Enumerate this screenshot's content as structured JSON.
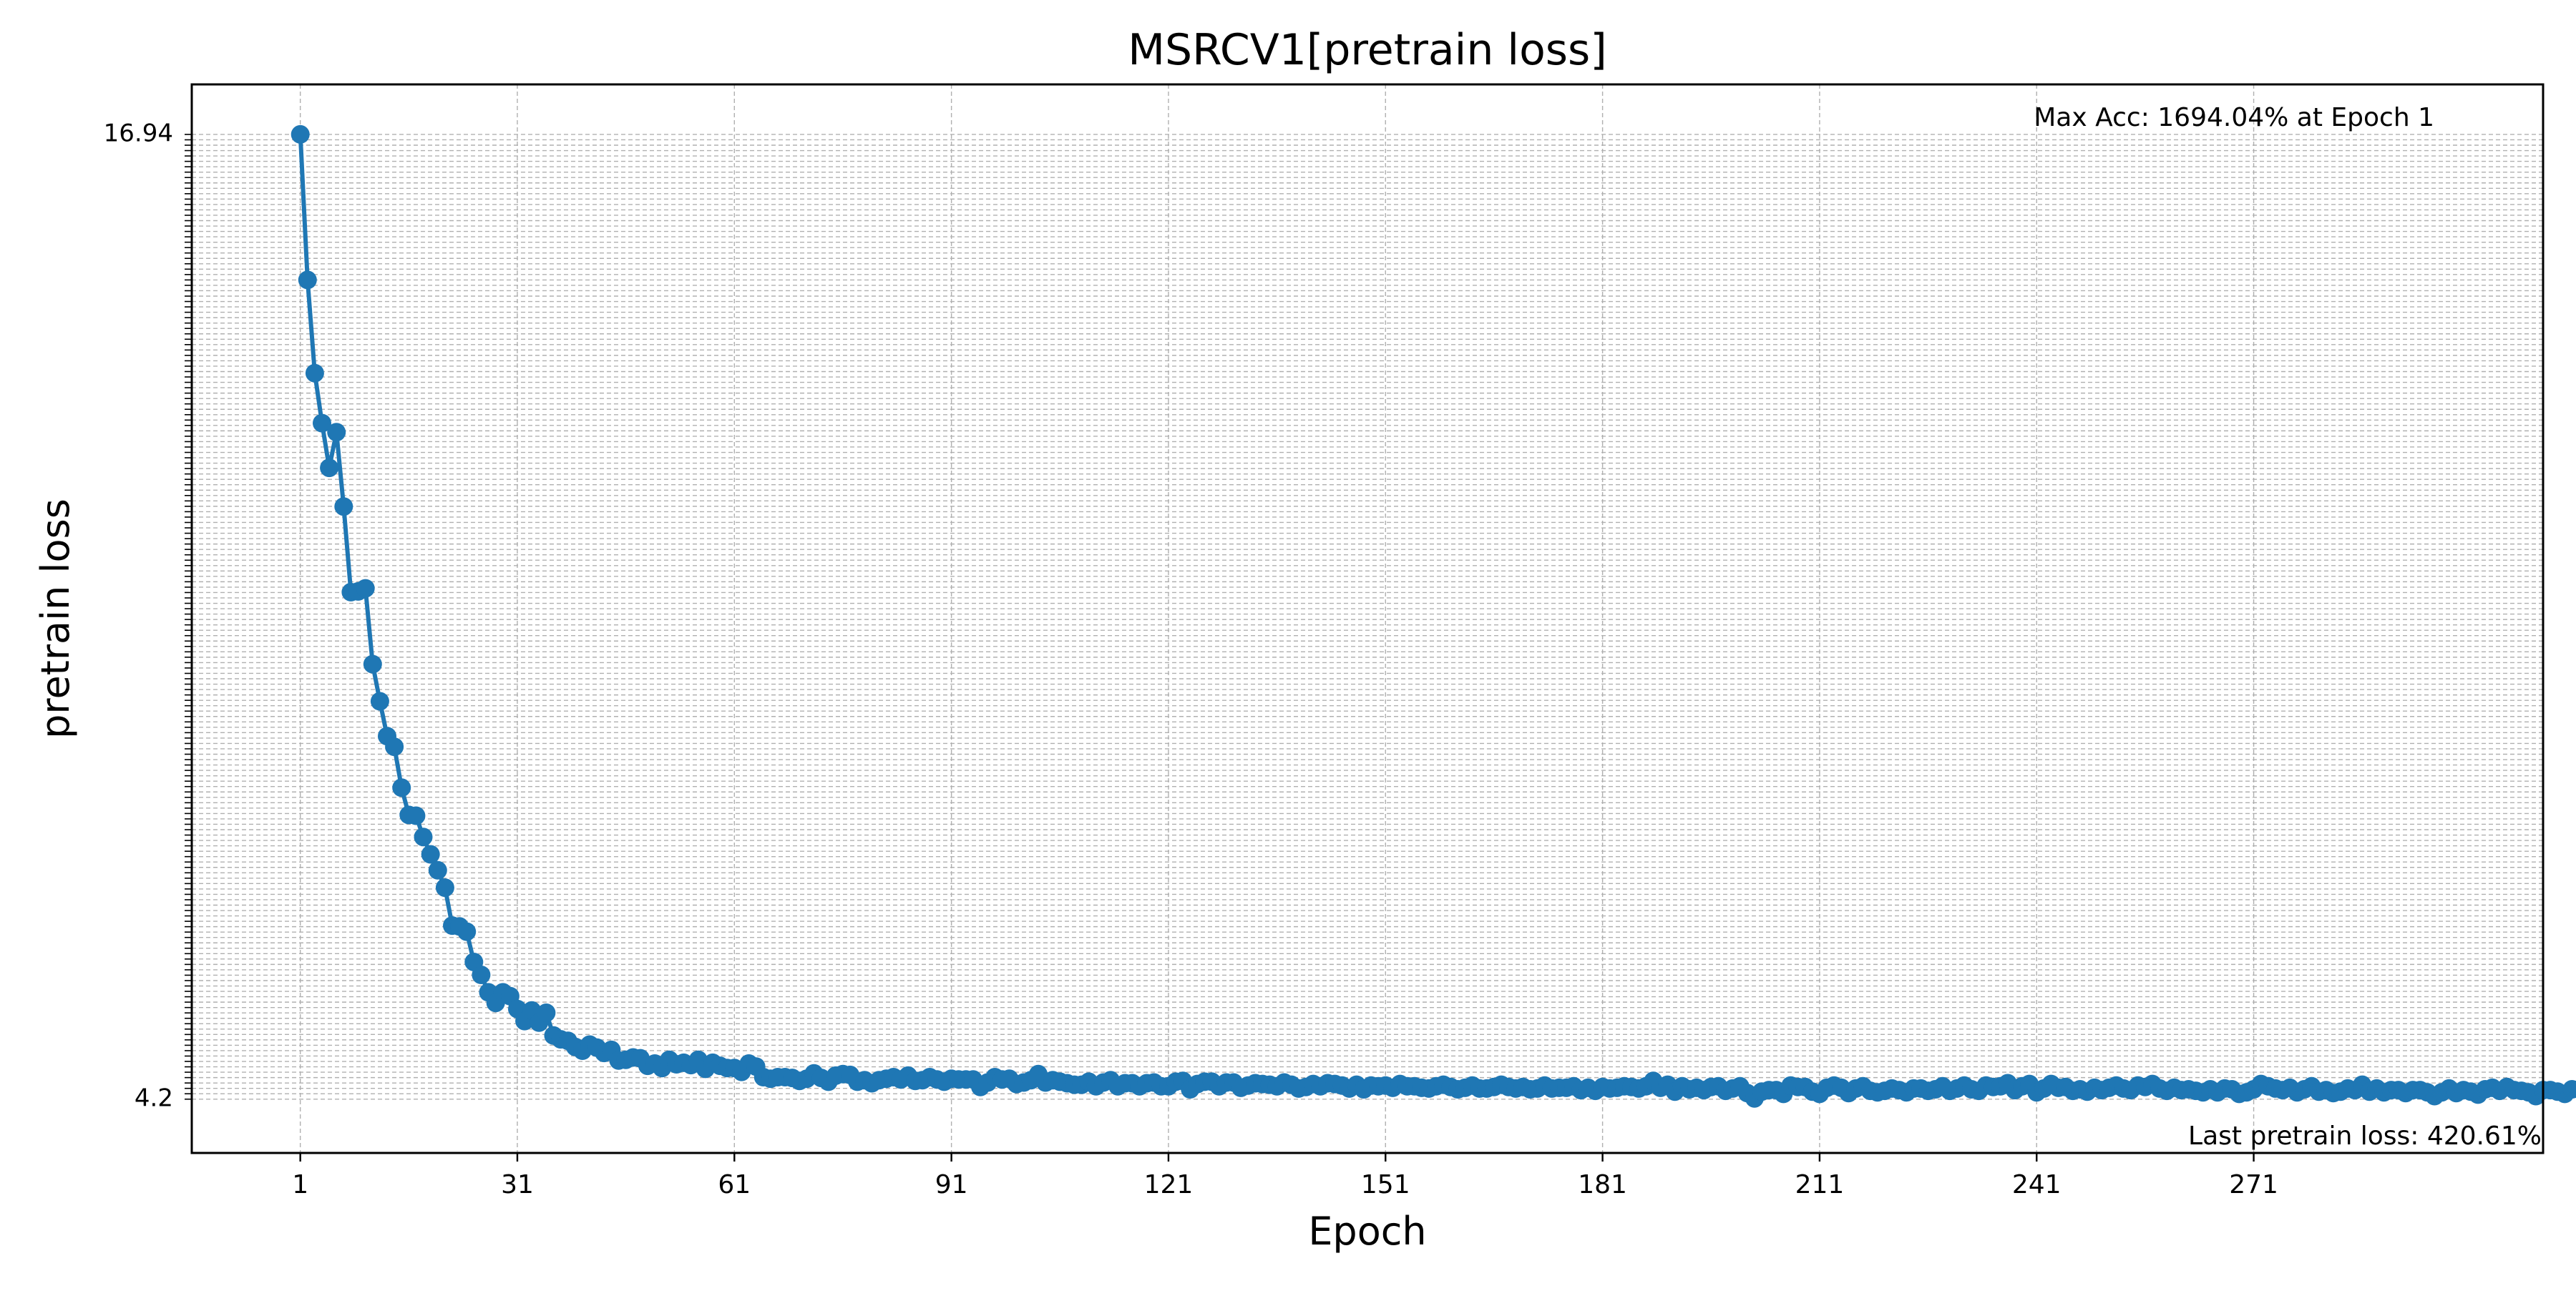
{
  "chart_data": {
    "type": "line",
    "title": "MSRCV1[pretrain loss]",
    "xlabel": "Epoch",
    "ylabel": "pretrain loss",
    "x_ticks": [
      1,
      31,
      61,
      91,
      121,
      151,
      181,
      211,
      241,
      271
    ],
    "xlim": [
      -14,
      311
    ],
    "ylim": [
      3.5,
      17.6
    ],
    "y_tick_top_label": "16.94",
    "y_tick_bottom_label": "4.2",
    "grid": true,
    "line_color": "#1f77b4",
    "annotations": {
      "max_text": "Max Acc: 1694.04% at Epoch 1",
      "last_text": "Last pretrain loss: 420.61%"
    },
    "series": [
      {
        "x_start": 1,
        "values": [
          16.94,
          15.02,
          13.79,
          13.13,
          12.54,
          13.01,
          12.03,
          10.9,
          10.91,
          10.95,
          9.95,
          9.46,
          9.0,
          8.86,
          8.32,
          7.96,
          7.95,
          7.67,
          7.44,
          7.23,
          7.0,
          6.5,
          6.49,
          6.42,
          6.02,
          5.85,
          5.62,
          5.48,
          5.62,
          5.57,
          5.4,
          5.24,
          5.38,
          5.22,
          5.35,
          5.05,
          5.0,
          4.98,
          4.9,
          4.85,
          4.93,
          4.89,
          4.82,
          4.86,
          4.72,
          4.73,
          4.76,
          4.75,
          4.65,
          4.68,
          4.62,
          4.73,
          4.67,
          4.69,
          4.66,
          4.73,
          4.61,
          4.69,
          4.65,
          4.62,
          4.62,
          4.57,
          4.68,
          4.64,
          4.5,
          4.48,
          4.5,
          4.5,
          4.49,
          4.45,
          4.48,
          4.55,
          4.49,
          4.44,
          4.52,
          4.54,
          4.53,
          4.44,
          4.46,
          4.42,
          4.46,
          4.48,
          4.5,
          4.47,
          4.52,
          4.45,
          4.46,
          4.5,
          4.47,
          4.44,
          4.48,
          4.47,
          4.47,
          4.47,
          4.37,
          4.43,
          4.5,
          4.47,
          4.48,
          4.41,
          4.43,
          4.46,
          4.54,
          4.43,
          4.46,
          4.44,
          4.42,
          4.4,
          4.4,
          4.44,
          4.38,
          4.43,
          4.46,
          4.38,
          4.42,
          4.42,
          4.38,
          4.42,
          4.43,
          4.38,
          4.38,
          4.44,
          4.45,
          4.34,
          4.41,
          4.44,
          4.44,
          4.38,
          4.43,
          4.43,
          4.36,
          4.39,
          4.42,
          4.41,
          4.4,
          4.38,
          4.43,
          4.4,
          4.35,
          4.37,
          4.41,
          4.38,
          4.42,
          4.41,
          4.39,
          4.35,
          4.4,
          4.34,
          4.39,
          4.38,
          4.39,
          4.36,
          4.41,
          4.38,
          4.38,
          4.36,
          4.35,
          4.38,
          4.4,
          4.37,
          4.34,
          4.36,
          4.39,
          4.35,
          4.35,
          4.37,
          4.4,
          4.37,
          4.35,
          4.37,
          4.34,
          4.35,
          4.39,
          4.35,
          4.36,
          4.36,
          4.38,
          4.33,
          4.36,
          4.32,
          4.37,
          4.35,
          4.36,
          4.38,
          4.37,
          4.35,
          4.38,
          4.45,
          4.36,
          4.4,
          4.31,
          4.38,
          4.34,
          4.36,
          4.33,
          4.37,
          4.38,
          4.32,
          4.35,
          4.38,
          4.29,
          4.22,
          4.31,
          4.33,
          4.33,
          4.28,
          4.39,
          4.37,
          4.37,
          4.31,
          4.28,
          4.36,
          4.39,
          4.36,
          4.29,
          4.35,
          4.38,
          4.32,
          4.3,
          4.32,
          4.35,
          4.33,
          4.3,
          4.35,
          4.35,
          4.32,
          4.34,
          4.38,
          4.32,
          4.35,
          4.39,
          4.34,
          4.32,
          4.39,
          4.37,
          4.38,
          4.42,
          4.33,
          4.38,
          4.41,
          4.3,
          4.35,
          4.41,
          4.36,
          4.37,
          4.32,
          4.34,
          4.31,
          4.36,
          4.33,
          4.36,
          4.39,
          4.35,
          4.33,
          4.39,
          4.37,
          4.41,
          4.35,
          4.32,
          4.36,
          4.33,
          4.34,
          4.32,
          4.3,
          4.34,
          4.3,
          4.35,
          4.34,
          4.28,
          4.3,
          4.34,
          4.41,
          4.38,
          4.35,
          4.33,
          4.36,
          4.3,
          4.34,
          4.38,
          4.31,
          4.33,
          4.29,
          4.31,
          4.35,
          4.33,
          4.4,
          4.31,
          4.35,
          4.3,
          4.33,
          4.33,
          4.29,
          4.33,
          4.33,
          4.3,
          4.25,
          4.3,
          4.35,
          4.29,
          4.33,
          4.31,
          4.27,
          4.34,
          4.36,
          4.32,
          4.37,
          4.33,
          4.32,
          4.3,
          4.25,
          4.33,
          4.33,
          4.31,
          4.28,
          4.34,
          4.34,
          4.21
        ]
      }
    ]
  }
}
